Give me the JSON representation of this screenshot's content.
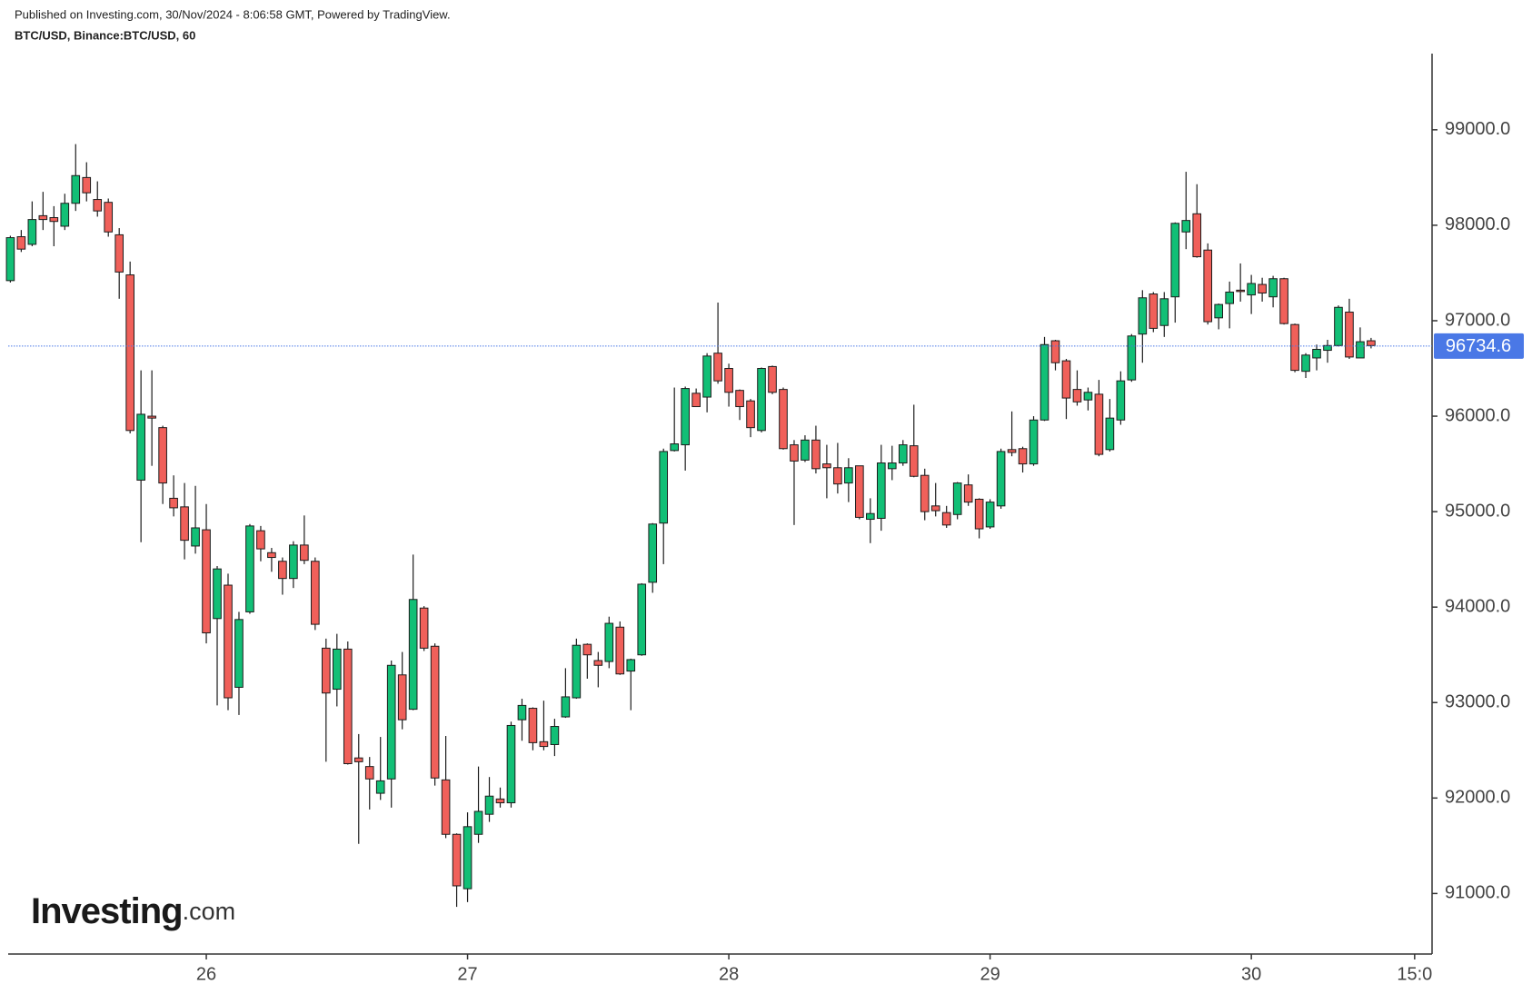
{
  "header": {
    "published": "Published on Investing.com, 30/Nov/2024 - 8:06:58 GMT, Powered by TradingView.",
    "symbol": "BTC/USD, Binance:BTC/USD, 60"
  },
  "logo": {
    "brand": "Investing",
    "suffix": ".com"
  },
  "chart_data": {
    "type": "candlestick",
    "open": [
      97420,
      97880,
      97800,
      98100,
      98080,
      97990,
      98230,
      98500,
      98270,
      98240,
      97900,
      97480,
      95330,
      96000,
      95880,
      95140,
      95050,
      94640,
      94810,
      93880,
      94230,
      93160,
      93950,
      94800,
      94570,
      94480,
      94300,
      94650,
      94480,
      93570,
      93140,
      93560,
      92420,
      92330,
      92050,
      92200,
      93290,
      92930,
      93990,
      93590,
      92190,
      91620,
      91050,
      91620,
      91830,
      91990,
      91950,
      92820,
      92940,
      92590,
      92560,
      92850,
      93050,
      93610,
      93440,
      93430,
      93790,
      93330,
      93500,
      94260,
      94880,
      95640,
      95700,
      96240,
      96200,
      96660,
      96500,
      96270,
      96160,
      95850,
      96520,
      96280,
      95700,
      95540,
      95750,
      95500,
      95460,
      95300,
      95480,
      94920,
      94930,
      95450,
      95510,
      95690,
      95380,
      95060,
      94990,
      94970,
      95280,
      95130,
      94840,
      95060,
      95650,
      95660,
      95500,
      95960,
      96790,
      96580,
      96280,
      96170,
      96230,
      95650,
      95960,
      96380,
      96860,
      97280,
      96950,
      97250,
      97930,
      98120,
      97740,
      97030,
      97180,
      97320,
      97270,
      97380,
      97250,
      97440,
      96960,
      96470,
      96610,
      96690,
      96740,
      97090,
      96610,
      96790
    ],
    "high": [
      97890,
      97950,
      98250,
      98350,
      98200,
      98330,
      98850,
      98660,
      98460,
      98280,
      97970,
      97620,
      96480,
      96480,
      95900,
      95380,
      95300,
      95270,
      95080,
      94430,
      94350,
      93950,
      94870,
      94850,
      94620,
      94520,
      94690,
      94960,
      94520,
      93670,
      93720,
      93640,
      92670,
      92430,
      92640,
      93440,
      93530,
      94550,
      94010,
      93620,
      92650,
      91630,
      91850,
      92330,
      92220,
      92110,
      92800,
      93040,
      92950,
      93020,
      92830,
      93360,
      93670,
      93620,
      93530,
      93900,
      93850,
      93460,
      94250,
      94880,
      95660,
      96300,
      96310,
      96290,
      96660,
      97190,
      96550,
      96280,
      96180,
      96510,
      96530,
      96300,
      95750,
      95800,
      95900,
      95700,
      95720,
      95560,
      95480,
      95140,
      95700,
      95690,
      95750,
      96120,
      95450,
      95300,
      95060,
      95310,
      95390,
      95140,
      95130,
      95660,
      96050,
      95680,
      96000,
      96830,
      96800,
      96600,
      96480,
      96300,
      96380,
      96180,
      96470,
      96860,
      97320,
      97300,
      97300,
      98030,
      98560,
      98430,
      97810,
      97180,
      97410,
      97600,
      97480,
      97450,
      97470,
      97450,
      96970,
      96660,
      96750,
      96800,
      97160,
      97230,
      96930,
      96820
    ],
    "low": [
      97400,
      97720,
      97780,
      97950,
      97780,
      97950,
      98150,
      98250,
      98090,
      97880,
      97230,
      95820,
      94680,
      95480,
      95080,
      94950,
      94500,
      94560,
      93620,
      92970,
      92920,
      92870,
      93930,
      94480,
      94370,
      94130,
      94200,
      94450,
      93760,
      92380,
      92960,
      92350,
      91520,
      91880,
      91980,
      91900,
      92720,
      92920,
      93540,
      92130,
      91580,
      90860,
      90910,
      91530,
      91750,
      91900,
      91900,
      92600,
      92500,
      92500,
      92440,
      92840,
      93040,
      93250,
      93160,
      93360,
      93290,
      92920,
      93490,
      94150,
      94450,
      95630,
      95430,
      96100,
      96040,
      96340,
      96100,
      95960,
      95780,
      95830,
      96230,
      95650,
      94860,
      95520,
      95400,
      95140,
      95190,
      95100,
      94920,
      94670,
      94800,
      95330,
      95480,
      95360,
      94910,
      94950,
      94830,
      94920,
      95060,
      94720,
      94820,
      95030,
      95580,
      95410,
      95480,
      95950,
      96480,
      95970,
      96110,
      96060,
      95580,
      95630,
      95910,
      96360,
      96560,
      96880,
      96830,
      96980,
      97750,
      97660,
      96960,
      96910,
      96920,
      97200,
      97070,
      97200,
      97140,
      96960,
      96460,
      96400,
      96480,
      96560,
      96730,
      96600,
      96610,
      96710
    ],
    "close": [
      97870,
      97750,
      98060,
      98060,
      98040,
      98230,
      98520,
      98340,
      98150,
      97930,
      97510,
      95850,
      96020,
      95980,
      95300,
      95040,
      94700,
      94830,
      93730,
      94400,
      93050,
      93870,
      94850,
      94610,
      94520,
      94300,
      94650,
      94490,
      93820,
      93100,
      93560,
      92360,
      92380,
      92200,
      92180,
      93390,
      92820,
      94080,
      93570,
      92210,
      91620,
      91080,
      91700,
      91860,
      92020,
      91950,
      92760,
      92970,
      92580,
      92540,
      92750,
      93060,
      93600,
      93500,
      93390,
      93830,
      93300,
      93450,
      94240,
      94870,
      95630,
      95710,
      96290,
      96100,
      96630,
      96370,
      96250,
      96100,
      95880,
      96500,
      96250,
      95660,
      95530,
      95750,
      95450,
      95460,
      95290,
      95460,
      94940,
      94980,
      95510,
      95510,
      95700,
      95370,
      95000,
      95010,
      94860,
      95300,
      95100,
      94820,
      95100,
      95630,
      95620,
      95500,
      95960,
      96750,
      96560,
      96190,
      96150,
      96250,
      95600,
      95980,
      96370,
      96840,
      97240,
      96920,
      97230,
      98020,
      98050,
      97670,
      96990,
      97170,
      97300,
      97310,
      97390,
      97290,
      97440,
      96970,
      96480,
      96640,
      96700,
      96740,
      97140,
      96620,
      96780,
      96740
    ],
    "up_color": "#12bf76",
    "down_color": "#f0605a",
    "border_color": "#1c1c1c",
    "last_price": 96734.6,
    "last_price_color": "#4a78e6",
    "xlim": [
      -0.2,
      130.6
    ],
    "xticks": [
      {
        "value": 18,
        "label": "26"
      },
      {
        "value": 42,
        "label": "27"
      },
      {
        "value": 66,
        "label": "28"
      },
      {
        "value": 90,
        "label": "29"
      },
      {
        "value": 114,
        "label": "30"
      },
      {
        "value": 129,
        "label": "15:0"
      }
    ],
    "ylim": [
      90366,
      99798
    ],
    "yticks": [
      {
        "value": 91000,
        "label": "91000.0"
      },
      {
        "value": 92000,
        "label": "92000.0"
      },
      {
        "value": 93000,
        "label": "93000.0"
      },
      {
        "value": 94000,
        "label": "94000.0"
      },
      {
        "value": 95000,
        "label": "95000.0"
      },
      {
        "value": 96000,
        "label": "96000.0"
      },
      {
        "value": 97000,
        "label": "97000.0"
      },
      {
        "value": 98000,
        "label": "98000.0"
      },
      {
        "value": 99000,
        "label": "99000.0"
      }
    ]
  }
}
